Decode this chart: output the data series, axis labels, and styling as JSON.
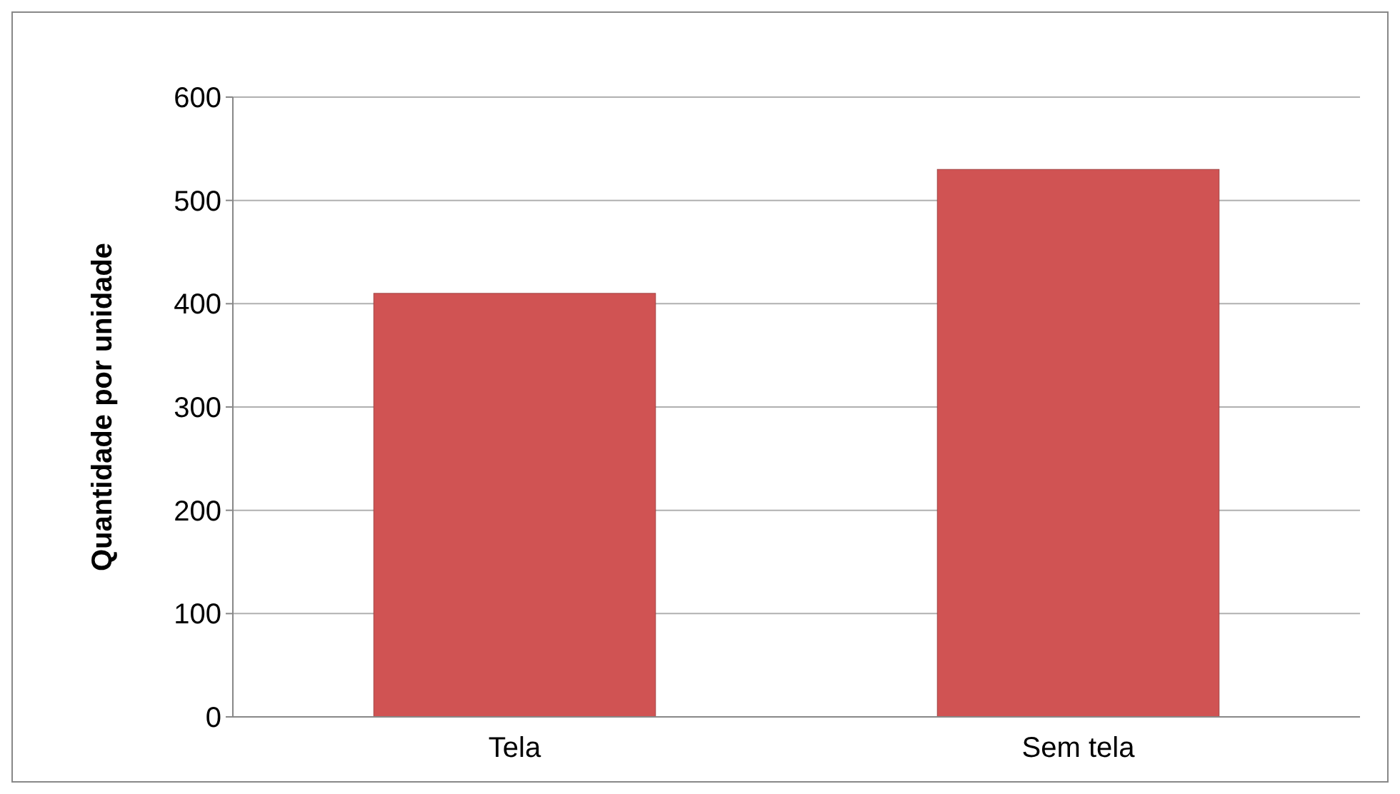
{
  "chart_data": {
    "type": "bar",
    "ylabel": "Quantidade por unidade",
    "categories": [
      "Tela",
      "Sem tela"
    ],
    "values": [
      410,
      530
    ],
    "color": "#d05353",
    "ylim": [
      0,
      600
    ],
    "yticks": [
      0,
      100,
      200,
      300,
      400,
      500,
      600
    ],
    "grid": "y"
  }
}
